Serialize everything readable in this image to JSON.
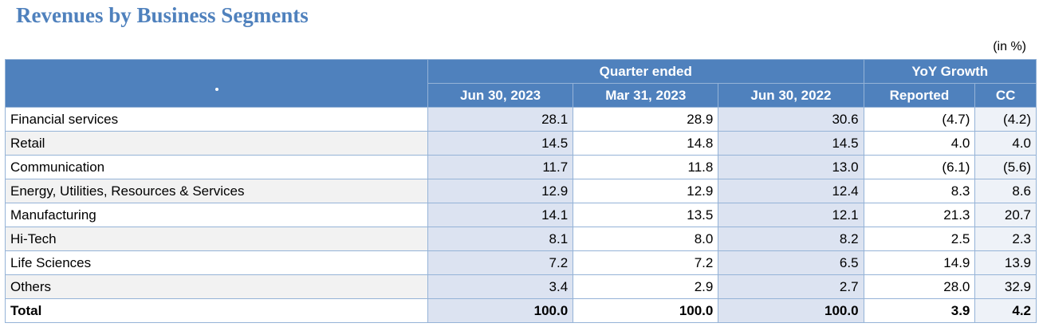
{
  "header": {
    "title": "Revenues by Business Segments",
    "unit": "(in %)"
  },
  "table": {
    "group_headers": [
      "Quarter ended",
      "YoY Growth"
    ],
    "columns": [
      "Jun 30, 2023",
      "Mar 31, 2023",
      "Jun 30, 2022",
      "Reported",
      "CC"
    ],
    "rows": [
      [
        "Financial services",
        "28.1",
        "28.9",
        "30.6",
        "(4.7)",
        "(4.2)"
      ],
      [
        "Retail",
        "14.5",
        "14.8",
        "14.5",
        "4.0",
        "4.0"
      ],
      [
        "Communication",
        "11.7",
        "11.8",
        "13.0",
        "(6.1)",
        "(5.6)"
      ],
      [
        "Energy, Utilities, Resources & Services",
        "12.9",
        "12.9",
        "12.4",
        "8.3",
        "8.6"
      ],
      [
        "Manufacturing",
        "14.1",
        "13.5",
        "12.1",
        "21.3",
        "20.7"
      ],
      [
        "Hi-Tech",
        "8.1",
        "8.0",
        "8.2",
        "2.5",
        "2.3"
      ],
      [
        "Life Sciences",
        "7.2",
        "7.2",
        "6.5",
        "14.9",
        "13.9"
      ],
      [
        "Others",
        "3.4",
        "2.9",
        "2.7",
        "28.0",
        "32.9"
      ],
      [
        "Total",
        "100.0",
        "100.0",
        "100.0",
        "3.9",
        "4.2"
      ]
    ]
  }
}
